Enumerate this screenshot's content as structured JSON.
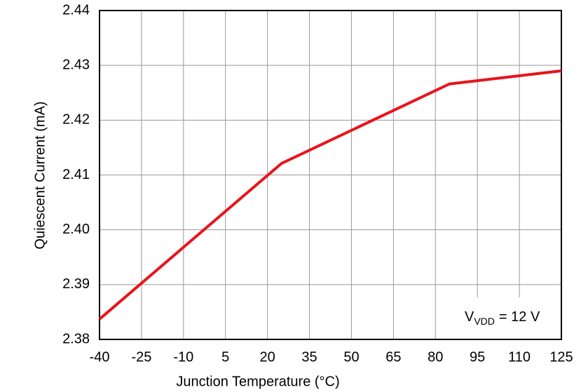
{
  "chart_data": {
    "type": "line",
    "x_label": "Junction Temperature (°C)",
    "y_label": "Quiescent Current (mA)",
    "annotation": {
      "text": "V",
      "sub": "VDD",
      "rest": "= 12 V"
    },
    "x": [
      -40,
      25,
      85,
      125
    ],
    "series": [
      {
        "name": "Quiescent Current",
        "color": "#e8141c",
        "values": [
          2.3837,
          2.4121,
          2.4266,
          2.429
        ]
      }
    ],
    "xlim": [
      -40,
      125
    ],
    "xticks": [
      -40,
      -25,
      -10,
      5,
      20,
      35,
      50,
      65,
      80,
      95,
      110,
      125
    ],
    "ylim": [
      2.38,
      2.44
    ],
    "yticks": [
      2.38,
      2.39,
      {
        "value": 2.4,
        "label": "2.40"
      },
      2.41,
      2.42,
      2.43,
      2.44
    ],
    "grid": true
  }
}
